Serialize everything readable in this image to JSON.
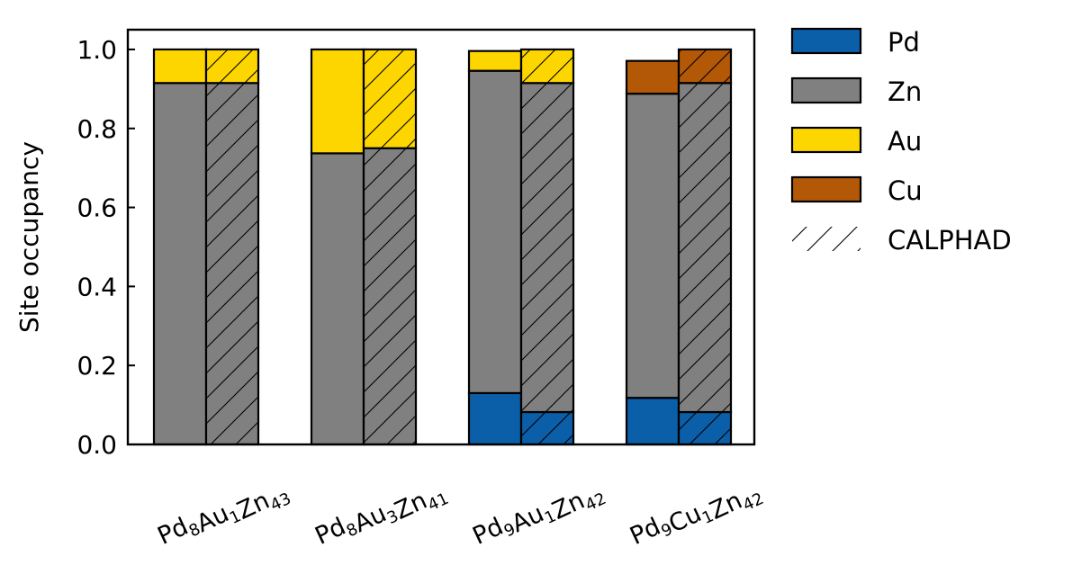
{
  "chart_data": {
    "type": "bar",
    "stacked": true,
    "paired": true,
    "ylabel": "Site occupancy",
    "ylim": [
      0,
      1.05
    ],
    "yticks": [
      "0.0",
      "0.2",
      "0.4",
      "0.6",
      "0.8",
      "1.0"
    ],
    "ytick_values": [
      0,
      0.2,
      0.4,
      0.6,
      0.8,
      1.0
    ],
    "grid": false,
    "legend_position": "outside-right",
    "categories": [
      {
        "base": "Pd",
        "parts": [
          [
            "Pd",
            "8"
          ],
          [
            "Au",
            "1"
          ],
          [
            "Zn",
            "43"
          ]
        ]
      },
      {
        "base": "Pd",
        "parts": [
          [
            "Pd",
            "8"
          ],
          [
            "Au",
            "3"
          ],
          [
            "Zn",
            "41"
          ]
        ]
      },
      {
        "base": "Pd",
        "parts": [
          [
            "Pd",
            "9"
          ],
          [
            "Au",
            "1"
          ],
          [
            "Zn",
            "42"
          ]
        ]
      },
      {
        "base": "Pd",
        "parts": [
          [
            "Pd",
            "9"
          ],
          [
            "Cu",
            "1"
          ],
          [
            "Zn",
            "42"
          ]
        ]
      }
    ],
    "series": [
      {
        "name": "Pd",
        "color": "#0b5ea8",
        "measured": [
          0,
          0,
          0.13,
          0.118
        ],
        "calphad": [
          0,
          0,
          0.082,
          0.082
        ]
      },
      {
        "name": "Zn",
        "color": "#808080",
        "measured": [
          0.915,
          0.737,
          0.816,
          0.77
        ],
        "calphad": [
          0.915,
          0.75,
          0.833,
          0.833
        ]
      },
      {
        "name": "Au",
        "color": "#fdd600",
        "measured": [
          0.085,
          0.263,
          0.05,
          0
        ],
        "calphad": [
          0.085,
          0.25,
          0.085,
          0
        ]
      },
      {
        "name": "Cu",
        "color": "#b35806",
        "measured": [
          0,
          0,
          0,
          0.083
        ],
        "calphad": [
          0,
          0,
          0,
          0.085
        ]
      }
    ],
    "hatch_legend_label": "CALPHAD"
  }
}
